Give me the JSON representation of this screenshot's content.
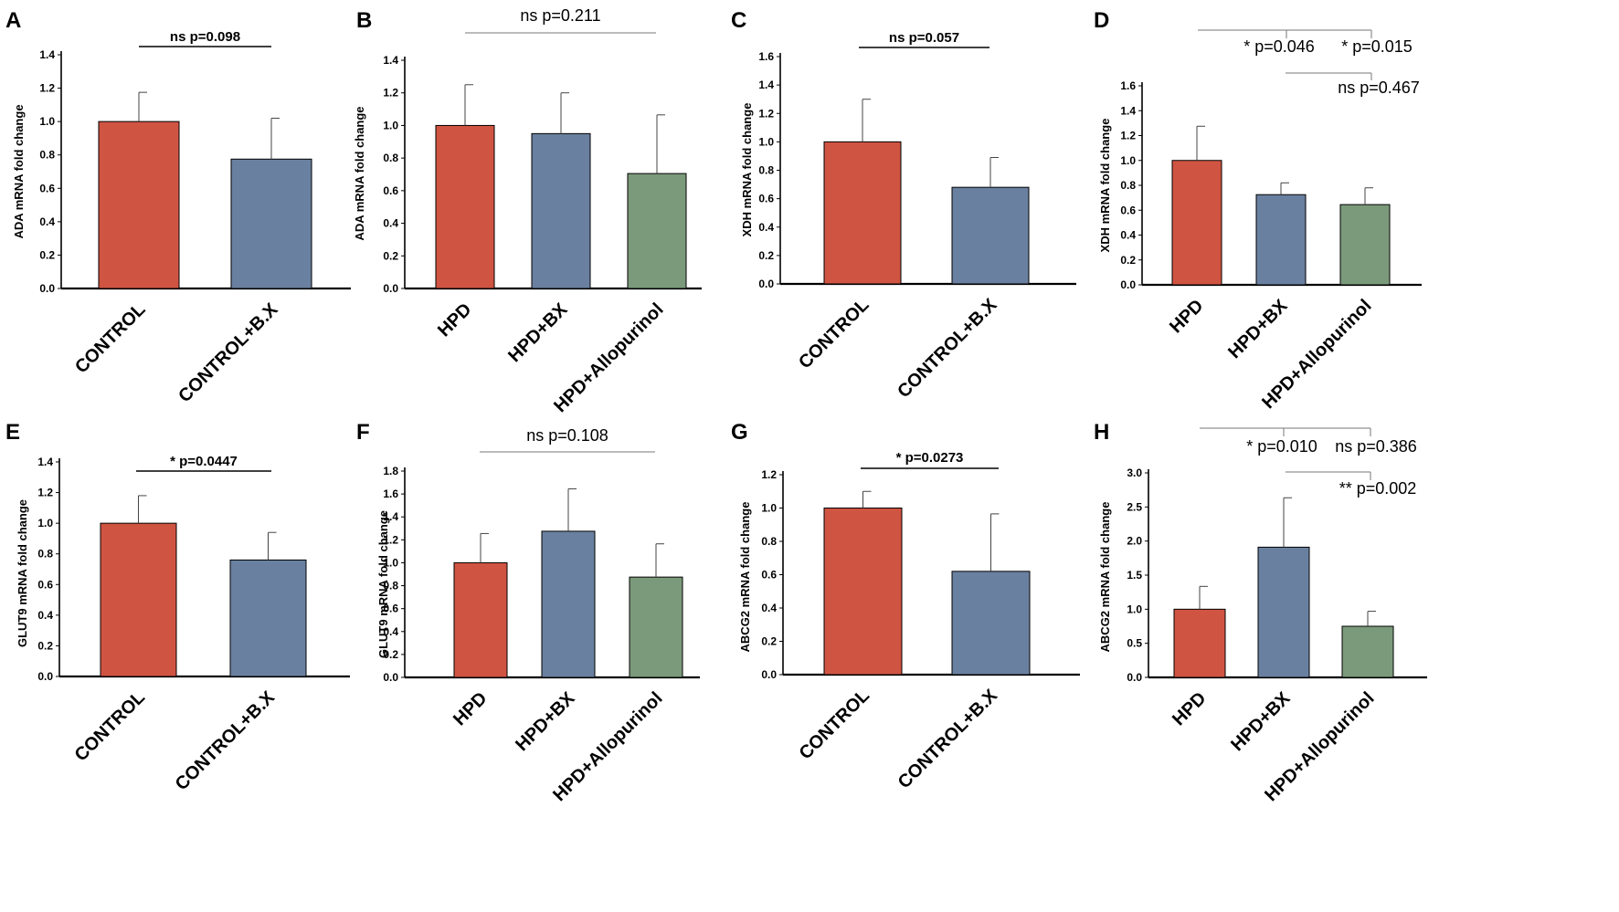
{
  "colors": {
    "red": "#d05442",
    "blue": "#6a80a0",
    "green": "#7b9a7b",
    "bracket": "#777777",
    "axis": "#000000"
  },
  "chart_data": [
    {
      "panel": "A",
      "type": "bar",
      "title": "",
      "ylabel": "ADA mRNA fold change",
      "xlabel": "",
      "ylim": [
        0,
        1.4
      ],
      "yticks": [
        "0.0",
        "0.2",
        "0.4",
        "0.6",
        "0.8",
        "1.0",
        "1.2",
        "1.4"
      ],
      "categories": [
        "CONTROL",
        "CONTROL+B.X"
      ],
      "values": [
        1.0,
        0.775
      ],
      "errors": [
        0.175,
        0.245
      ],
      "annotations": [
        {
          "text": "ns p=0.098",
          "from": 0,
          "to": 1
        }
      ]
    },
    {
      "panel": "B",
      "type": "bar",
      "title": "",
      "ylabel": "ADA mRNA fold change",
      "xlabel": "",
      "ylim": [
        0,
        1.4
      ],
      "yticks": [
        "0.0",
        "0.2",
        "0.4",
        "0.6",
        "0.8",
        "1.0",
        "1.2",
        "1.4"
      ],
      "categories": [
        "HPD",
        "HPD+BX",
        "HPD+Allopurinol"
      ],
      "values": [
        1.0,
        0.95,
        0.705
      ],
      "errors": [
        0.25,
        0.25,
        0.36
      ],
      "annotations": [
        {
          "text": "ns p=0.211",
          "from": 0,
          "to": 2
        }
      ]
    },
    {
      "panel": "C",
      "type": "bar",
      "title": "",
      "ylabel": "XDH mRNA fold change",
      "xlabel": "",
      "ylim": [
        0,
        1.6
      ],
      "yticks": [
        "0.0",
        "0.2",
        "0.4",
        "0.6",
        "0.8",
        "1.0",
        "1.2",
        "1.4",
        "1.6"
      ],
      "categories": [
        "CONTROL",
        "CONTROL+B.X"
      ],
      "values": [
        1.0,
        0.68
      ],
      "errors": [
        0.3,
        0.21
      ],
      "annotations": [
        {
          "text": "ns p=0.057",
          "from": 0,
          "to": 1
        }
      ]
    },
    {
      "panel": "D",
      "type": "bar",
      "title": "",
      "ylabel": "XDH mRNA fold change",
      "xlabel": "",
      "ylim": [
        0,
        1.6
      ],
      "yticks": [
        "0.0",
        "0.2",
        "0.4",
        "0.6",
        "0.8",
        "1.0",
        "1.2",
        "1.4",
        "1.6"
      ],
      "categories": [
        "HPD",
        "HPD+BX",
        "HPD+Allopurinol"
      ],
      "values": [
        1.0,
        0.725,
        0.645
      ],
      "errors": [
        0.275,
        0.095,
        0.135
      ],
      "annotations": [
        {
          "text": "* p=0.046",
          "from": 0,
          "to": 1
        },
        {
          "text": "* p=0.015",
          "from": 0,
          "to": 2
        },
        {
          "text": "ns p=0.467",
          "from": 1,
          "to": 2
        }
      ]
    },
    {
      "panel": "E",
      "type": "bar",
      "title": "",
      "ylabel": "GLUT9 mRNA fold change",
      "xlabel": "",
      "ylim": [
        0,
        1.4
      ],
      "yticks": [
        "0.0",
        "0.2",
        "0.4",
        "0.6",
        "0.8",
        "1.0",
        "1.2",
        "1.4"
      ],
      "categories": [
        "CONTROL",
        "CONTROL+B.X"
      ],
      "values": [
        1.0,
        0.76
      ],
      "errors": [
        0.18,
        0.18
      ],
      "annotations": [
        {
          "text": "* p=0.0447",
          "from": 0,
          "to": 1
        }
      ]
    },
    {
      "panel": "F",
      "type": "bar",
      "title": "",
      "ylabel": "GLUT9 mRNA fold change",
      "xlabel": "",
      "ylim": [
        0,
        1.8
      ],
      "yticks": [
        "0.0",
        "0.2",
        "0.4",
        "0.6",
        "0.8",
        "1.0",
        "1.2",
        "1.4",
        "1.6",
        "1.8"
      ],
      "categories": [
        "HPD",
        "HPD+BX",
        "HPD+Allopurinol"
      ],
      "values": [
        1.0,
        1.275,
        0.875
      ],
      "errors": [
        0.255,
        0.37,
        0.29
      ],
      "annotations": [
        {
          "text": "ns p=0.108",
          "from": 0,
          "to": 2
        }
      ]
    },
    {
      "panel": "G",
      "type": "bar",
      "title": "",
      "ylabel": "ABCG2 mRNA fold change",
      "xlabel": "",
      "ylim": [
        0,
        1.2
      ],
      "yticks": [
        "0.0",
        "0.2",
        "0.4",
        "0.6",
        "0.8",
        "1.0",
        "1.2"
      ],
      "categories": [
        "CONTROL",
        "CONTROL+B.X"
      ],
      "values": [
        1.0,
        0.62
      ],
      "errors": [
        0.1,
        0.345
      ],
      "annotations": [
        {
          "text": "* p=0.0273",
          "from": 0,
          "to": 1
        }
      ]
    },
    {
      "panel": "H",
      "type": "bar",
      "title": "",
      "ylabel": "ABCG2 mRNA fold change",
      "xlabel": "",
      "ylim": [
        0,
        3.0
      ],
      "yticks": [
        "0.0",
        "0.5",
        "1.0",
        "1.5",
        "2.0",
        "2.5",
        "3.0"
      ],
      "categories": [
        "HPD",
        "HPD+BX",
        "HPD+Allopurinol"
      ],
      "values": [
        1.0,
        1.91,
        0.75
      ],
      "errors": [
        0.335,
        0.725,
        0.22
      ],
      "annotations": [
        {
          "text": "* p=0.010",
          "from": 0,
          "to": 1
        },
        {
          "text": "ns p=0.386",
          "from": 0,
          "to": 2
        },
        {
          "text": "** p=0.002",
          "from": 1,
          "to": 2
        }
      ]
    }
  ]
}
